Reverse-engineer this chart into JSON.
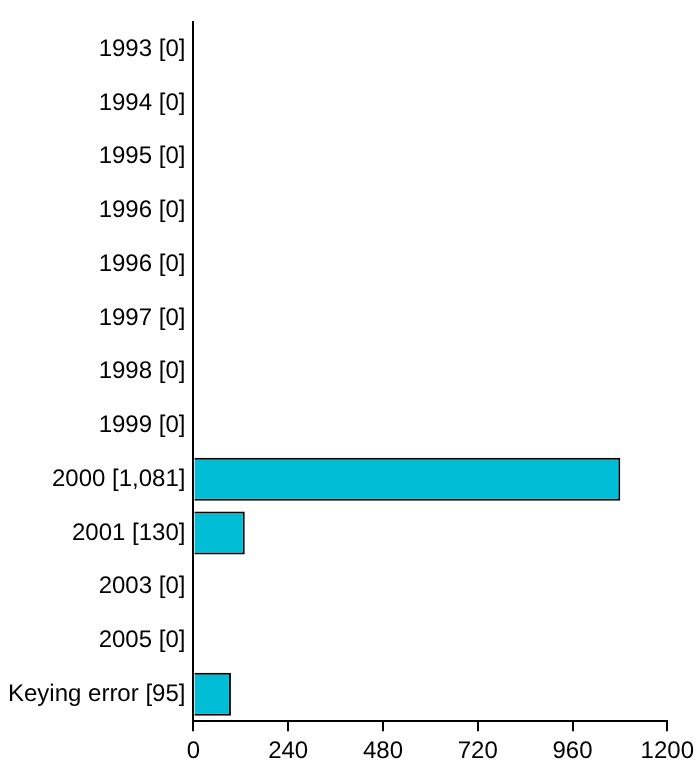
{
  "chart_data": {
    "type": "bar",
    "orientation": "horizontal",
    "categories": [
      "1993 [0]",
      "1994 [0]",
      "1995 [0]",
      "1996 [0]",
      "1996 [0]",
      "1997 [0]",
      "1998 [0]",
      "1999 [0]",
      "2000 [1,081]",
      "2001 [130]",
      "2003 [0]",
      "2005 [0]",
      "Keying error [95]"
    ],
    "values": [
      0,
      0,
      0,
      0,
      0,
      0,
      0,
      0,
      1081,
      130,
      0,
      0,
      95
    ],
    "color": "#00bcd4",
    "xlim": [
      0,
      1200
    ],
    "xticks": [
      0,
      240,
      480,
      720,
      960,
      1200
    ],
    "grid": false,
    "legend": false
  }
}
